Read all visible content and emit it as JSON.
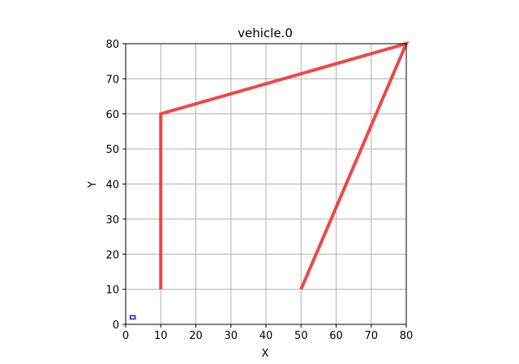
{
  "chart_data": {
    "type": "line",
    "title": "vehicle.0",
    "xlabel": "X",
    "ylabel": "Y",
    "xlim": [
      0,
      80
    ],
    "ylim": [
      0,
      80
    ],
    "xticks": [
      0,
      10,
      20,
      30,
      40,
      50,
      60,
      70,
      80
    ],
    "yticks": [
      0,
      10,
      20,
      30,
      40,
      50,
      60,
      70,
      80
    ],
    "grid": true,
    "series": [
      {
        "x": [
          10,
          10,
          80,
          50
        ],
        "y": [
          10,
          60,
          80,
          10
        ],
        "color": "#ee3333"
      }
    ],
    "markers": [
      {
        "x": 2,
        "y": 2,
        "color": "#2222cc",
        "shape": "small-rectangle"
      }
    ]
  }
}
